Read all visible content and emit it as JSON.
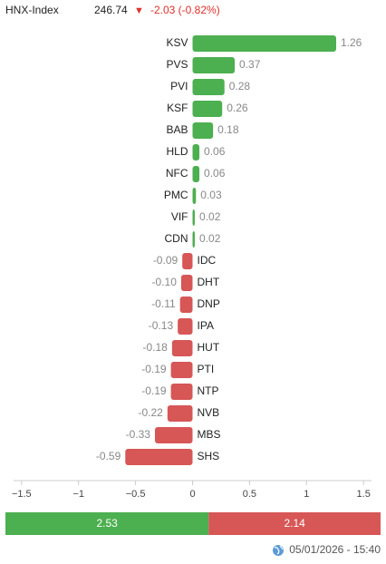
{
  "header": {
    "index_name": "HNX-Index",
    "index_value": "246.74",
    "arrow": "▼",
    "change": "-2.03 (-0.82%)"
  },
  "chart_data": {
    "type": "hbar",
    "categories": [
      "KSV",
      "PVS",
      "PVI",
      "KSF",
      "BAB",
      "HLD",
      "NFC",
      "PMC",
      "VIF",
      "CDN",
      "IDC",
      "DHT",
      "DNP",
      "IPA",
      "HUT",
      "PTI",
      "NTP",
      "NVB",
      "MBS",
      "SHS"
    ],
    "values": [
      1.26,
      0.37,
      0.28,
      0.26,
      0.18,
      0.06,
      0.06,
      0.03,
      0.02,
      0.02,
      -0.09,
      -0.1,
      -0.11,
      -0.13,
      -0.18,
      -0.19,
      -0.19,
      -0.22,
      -0.33,
      -0.59
    ],
    "value_labels": [
      "1.26",
      "0.37",
      "0.28",
      "0.26",
      "0.18",
      "0.06",
      "0.06",
      "0.03",
      "0.02",
      "0.02",
      "-0.09",
      "-0.10",
      "-0.11",
      "-0.13",
      "-0.18",
      "-0.19",
      "-0.19",
      "-0.22",
      "-0.33",
      "-0.59"
    ],
    "positive_color": "#4caf50",
    "negative_color": "#d75656",
    "xlim": [
      -1.57,
      1.57
    ],
    "xticks": [
      {
        "value": -1.5,
        "label": "−1.5"
      },
      {
        "value": -1,
        "label": "−1"
      },
      {
        "value": -0.5,
        "label": "−0.5"
      },
      0,
      0.5,
      1,
      1.5
    ]
  },
  "breadth": {
    "advance": 2.53,
    "decline": 2.14,
    "advance_color": "#4caf50",
    "decline_color": "#d75656"
  },
  "footer": {
    "timestamp": "05/01/2026 - 15:40"
  }
}
